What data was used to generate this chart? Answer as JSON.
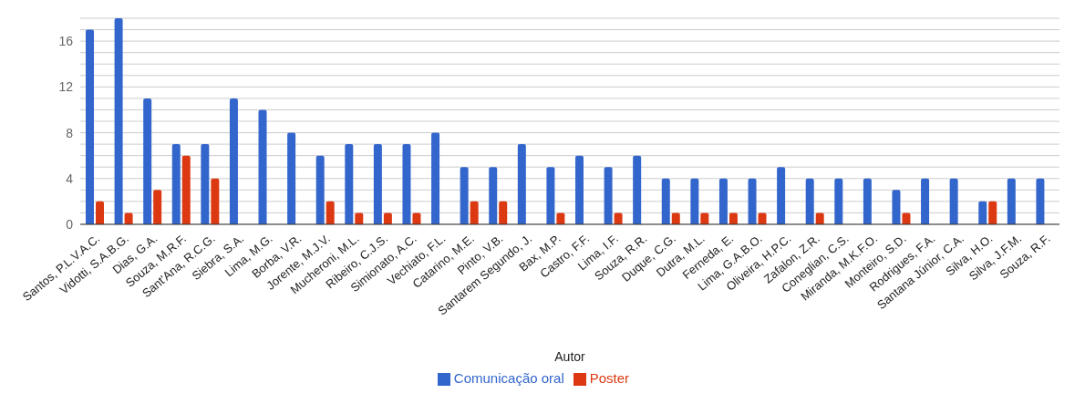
{
  "chart_data": {
    "type": "bar",
    "xlabel": "Autor",
    "categories": [
      "Santos, P.L.V.A.C.",
      "Vidotti, S.A.B.G.",
      "Dias, G.A.",
      "Souza, M.R.F.",
      "Sant'Ana, R.C.G.",
      "Siebra, S.A.",
      "Lima, M.G.",
      "Borba, V.R.",
      "Jorente, M.J.V.",
      "Mucheroni, M.L.",
      "Ribeiro, C.J.S.",
      "Simionato, A.C.",
      "Vechiato, F.L.",
      "Catarino, M.E.",
      "Pinto, V.B.",
      "Santarem Segundo, J.",
      "Bax, M.P.",
      "Castro, F.F.",
      "Lima, I.F.",
      "Souza, R.R.",
      "Duque, C.G.",
      "Dutra, M.L.",
      "Ferneda, E.",
      "Lima, G.A.B.O.",
      "Oliveira, H.P.C.",
      "Zafalon, Z.R.",
      "Coneglian, C.S.",
      "Miranda, M.K.F.O.",
      "Monteiro, S.D.",
      "Rodrigues, F.A.",
      "Santana Júnior, C.A.",
      "Silva, H.O.",
      "Silva, J.F.M.",
      "Souza, R.F."
    ],
    "series": [
      {
        "name": "Comunicação oral",
        "color": "#3366cc",
        "values": [
          17,
          18,
          11,
          7,
          7,
          11,
          10,
          8,
          6,
          7,
          7,
          7,
          8,
          5,
          5,
          7,
          5,
          6,
          5,
          6,
          4,
          4,
          4,
          4,
          5,
          4,
          4,
          4,
          3,
          4,
          4,
          2,
          4,
          4
        ]
      },
      {
        "name": "Poster",
        "color": "#dc3912",
        "values": [
          2,
          1,
          3,
          6,
          4,
          null,
          null,
          null,
          2,
          1,
          1,
          1,
          null,
          2,
          2,
          null,
          1,
          null,
          1,
          null,
          1,
          1,
          1,
          1,
          null,
          1,
          null,
          null,
          1,
          null,
          null,
          2,
          null,
          null
        ]
      }
    ],
    "ylim": [
      0,
      18
    ],
    "yticks": [
      0,
      {
        "value": 1,
        "label": null
      },
      {
        "value": 2,
        "label": null
      },
      {
        "value": 3,
        "label": null
      },
      4,
      {
        "value": 5,
        "label": null
      },
      {
        "value": 6,
        "label": null
      },
      {
        "value": 7,
        "label": null
      },
      8,
      {
        "value": 9,
        "label": null
      },
      {
        "value": 10,
        "label": null
      },
      {
        "value": 11,
        "label": null
      },
      12,
      {
        "value": 13,
        "label": null
      },
      {
        "value": 14,
        "label": null
      },
      {
        "value": 15,
        "label": null
      },
      16,
      {
        "value": 17,
        "label": null
      },
      {
        "value": 18,
        "label": null
      }
    ],
    "grid": "y",
    "legend": "bottom"
  }
}
